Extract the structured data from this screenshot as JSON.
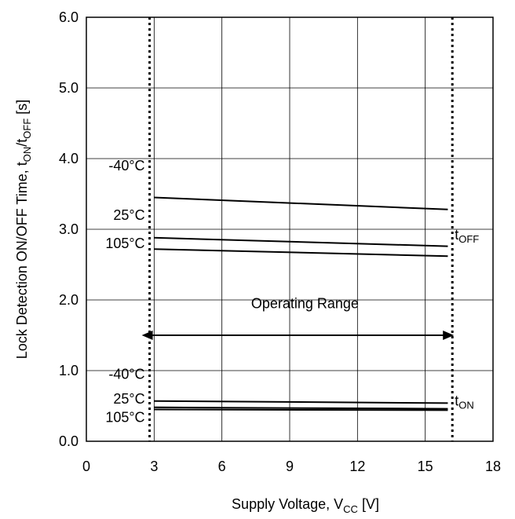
{
  "chart_data": {
    "type": "line",
    "xlabel": {
      "main": "Supply Voltage, V",
      "sub": "CC",
      "unit": " [V]"
    },
    "ylabel": {
      "p1": "Lock Detection ON/OFF Time, t",
      "s1": "ON",
      "p2": "/t",
      "s2": "OFF",
      "p3": " [s]"
    },
    "xlim": [
      0,
      18
    ],
    "ylim": [
      0,
      6
    ],
    "x_ticks": [
      0,
      3,
      6,
      9,
      12,
      15,
      18
    ],
    "y_ticks": [
      0,
      1,
      2,
      3,
      4,
      5,
      6
    ],
    "x_tick_labels": [
      "0",
      "3",
      "6",
      "9",
      "12",
      "15",
      "18"
    ],
    "y_tick_labels": [
      "0.0",
      "1.0",
      "2.0",
      "3.0",
      "4.0",
      "5.0",
      "6.0"
    ],
    "grid": true,
    "series": [
      {
        "name": "-40°C",
        "group": "tOFF",
        "x": [
          3,
          16
        ],
        "y": [
          3.45,
          3.28
        ]
      },
      {
        "name": "25°C",
        "group": "tOFF",
        "x": [
          3,
          16
        ],
        "y": [
          2.88,
          2.76
        ]
      },
      {
        "name": "105°C",
        "group": "tOFF",
        "x": [
          3,
          16
        ],
        "y": [
          2.72,
          2.62
        ]
      },
      {
        "name": "-40°C",
        "group": "tON",
        "x": [
          3,
          16
        ],
        "y": [
          0.57,
          0.54
        ]
      },
      {
        "name": "25°C",
        "group": "tON",
        "x": [
          3,
          16
        ],
        "y": [
          0.48,
          0.46
        ]
      },
      {
        "name": "105°C",
        "group": "tON",
        "x": [
          3,
          16
        ],
        "y": [
          0.45,
          0.44
        ]
      }
    ],
    "operating_range": {
      "label": "Operating Range",
      "x": [
        2.8,
        16.2
      ],
      "arrow_y": 1.5,
      "label_y": 1.95
    },
    "annotations": {
      "toff_temps": [
        {
          "text": "-40°C",
          "y": 3.9
        },
        {
          "text": "25°C",
          "y": 3.2
        },
        {
          "text": "105°C",
          "y": 2.8
        }
      ],
      "ton_temps": [
        {
          "text": "-40°C",
          "y": 0.95
        },
        {
          "text": "25°C",
          "y": 0.6
        },
        {
          "text": "105°C",
          "y": 0.34
        }
      ],
      "toff_label": {
        "main": "t",
        "sub": "OFF",
        "y": 2.92
      },
      "ton_label": {
        "main": "t",
        "sub": "ON",
        "y": 0.57
      }
    }
  }
}
